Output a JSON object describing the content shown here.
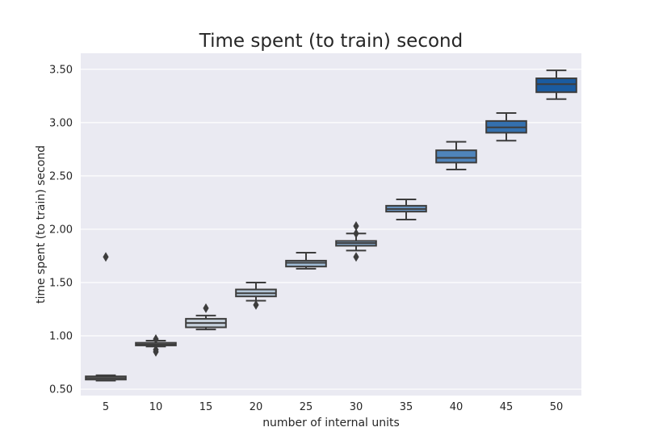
{
  "chart_data": {
    "type": "box",
    "title": "Time spent (to train) second",
    "xlabel": "number of internal units",
    "ylabel": "time spent (to train) second",
    "ylim": [
      0.44,
      3.65
    ],
    "yticks": [
      0.5,
      1.0,
      1.5,
      2.0,
      2.5,
      3.0,
      3.5
    ],
    "ytick_labels": [
      "0.50",
      "1.00",
      "1.50",
      "2.00",
      "2.50",
      "3.00",
      "3.50"
    ],
    "grid": true,
    "background": "#eaeaf2",
    "categories": [
      "5",
      "10",
      "15",
      "20",
      "25",
      "30",
      "35",
      "40",
      "45",
      "50"
    ],
    "boxes": [
      {
        "whisker_low": 0.58,
        "q1": 0.59,
        "median": 0.605,
        "q3": 0.62,
        "whisker_high": 0.63,
        "outliers": [
          1.74
        ],
        "color": "#e6e6e6"
      },
      {
        "whisker_low": 0.9,
        "q1": 0.91,
        "median": 0.92,
        "q3": 0.935,
        "whisker_high": 0.955,
        "outliers": [
          0.85,
          0.87,
          0.97
        ],
        "color": "#d7dce2"
      },
      {
        "whisker_low": 1.06,
        "q1": 1.08,
        "median": 1.12,
        "q3": 1.16,
        "whisker_high": 1.19,
        "outliers": [
          1.26
        ],
        "color": "#c6d1dc"
      },
      {
        "whisker_low": 1.33,
        "q1": 1.37,
        "median": 1.4,
        "q3": 1.435,
        "whisker_high": 1.5,
        "outliers": [
          1.29
        ],
        "color": "#b3c6d8"
      },
      {
        "whisker_low": 1.63,
        "q1": 1.65,
        "median": 1.685,
        "q3": 1.705,
        "whisker_high": 1.78,
        "outliers": [],
        "color": "#9fbad4"
      },
      {
        "whisker_low": 1.8,
        "q1": 1.845,
        "median": 1.87,
        "q3": 1.89,
        "whisker_high": 1.96,
        "outliers": [
          1.74,
          1.96,
          2.03
        ],
        "color": "#86a9cd"
      },
      {
        "whisker_low": 2.09,
        "q1": 2.165,
        "median": 2.19,
        "q3": 2.22,
        "whisker_high": 2.28,
        "outliers": [],
        "color": "#6c98c6"
      },
      {
        "whisker_low": 2.56,
        "q1": 2.625,
        "median": 2.67,
        "q3": 2.74,
        "whisker_high": 2.82,
        "outliers": [],
        "color": "#4f84bb"
      },
      {
        "whisker_low": 2.83,
        "q1": 2.905,
        "median": 2.955,
        "q3": 3.015,
        "whisker_high": 3.09,
        "outliers": [],
        "color": "#3470ae"
      },
      {
        "whisker_low": 3.22,
        "q1": 3.285,
        "median": 3.36,
        "q3": 3.415,
        "whisker_high": 3.49,
        "outliers": [],
        "color": "#1a5ba0"
      }
    ]
  }
}
